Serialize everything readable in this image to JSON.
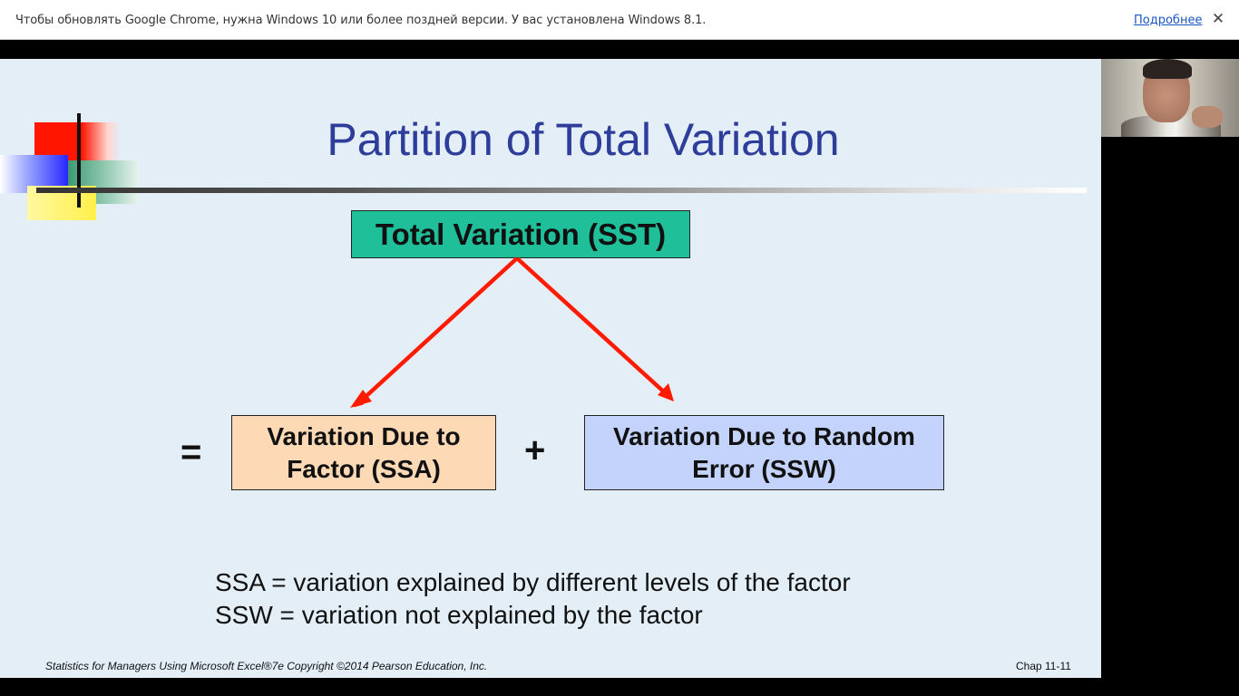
{
  "browser": {
    "infobar": {
      "message": "Чтобы обновлять Google Chrome, нужна Windows 10 или более поздней версии. У вас установлена Windows 8.1.",
      "more_link": "Подробнее",
      "close_glyph": "✕"
    }
  },
  "slide": {
    "title": "Partition of Total Variation",
    "boxes": {
      "sst": "Total Variation (SST)",
      "ssa_line1": "Variation Due to",
      "ssa_line2": "Factor (SSA)",
      "ssw_line1": "Variation Due to Random",
      "ssw_line2": "Error (SSW)"
    },
    "operators": {
      "equals": "=",
      "plus": "+"
    },
    "definitions": [
      "SSA = variation explained by different levels of the factor",
      "SSW = variation not explained by the factor"
    ],
    "footer": {
      "left": "Statistics for Managers Using Microsoft Excel®7e Copyright ©2014 Pearson Education, Inc.",
      "right": "Chap 11-11"
    },
    "colors": {
      "title": "#2e3d9a",
      "sst_box": "#1fbf9a",
      "ssa_box": "#fdd9b5",
      "ssw_box": "#c3d3fb",
      "arrow": "#ff1a00",
      "background": "#e3eef6"
    }
  },
  "webcam": {
    "icon": "presenter-video"
  }
}
